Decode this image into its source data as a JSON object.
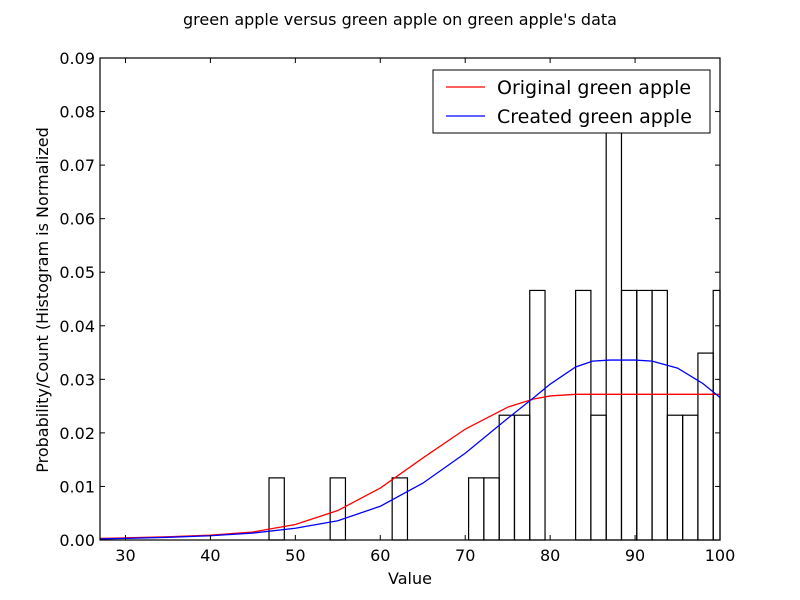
{
  "chart_data": {
    "type": "bar",
    "title": "green apple versus green apple on green apple's data",
    "xlabel": "Value",
    "ylabel": "Probability/Count (Histogram is Normalized",
    "xlim": [
      27,
      100
    ],
    "ylim": [
      0,
      0.09
    ],
    "grid": false,
    "legend_placement": "top-right",
    "x_ticks": [
      30,
      40,
      50,
      60,
      70,
      80,
      90,
      100
    ],
    "x_tick_labels": [
      "30",
      "40",
      "50",
      "60",
      "70",
      "80",
      "90",
      "100"
    ],
    "y_ticks": [
      0.0,
      0.01,
      0.02,
      0.03,
      0.04,
      0.05,
      0.06,
      0.07,
      0.08,
      0.09
    ],
    "y_tick_labels": [
      "0.00",
      "0.01",
      "0.02",
      "0.03",
      "0.04",
      "0.05",
      "0.06",
      "0.07",
      "0.08",
      "0.09"
    ],
    "histogram": {
      "bins": [
        {
          "start": 46.9,
          "end": 48.7,
          "value": 0.0116
        },
        {
          "start": 54.1,
          "end": 55.9,
          "value": 0.0116
        },
        {
          "start": 61.4,
          "end": 63.2,
          "value": 0.0116
        },
        {
          "start": 70.4,
          "end": 72.2,
          "value": 0.0116
        },
        {
          "start": 72.2,
          "end": 74.0,
          "value": 0.0116
        },
        {
          "start": 74.0,
          "end": 75.8,
          "value": 0.0233
        },
        {
          "start": 75.8,
          "end": 77.6,
          "value": 0.0233
        },
        {
          "start": 77.6,
          "end": 79.4,
          "value": 0.0466
        },
        {
          "start": 83.0,
          "end": 84.8,
          "value": 0.0466
        },
        {
          "start": 84.8,
          "end": 86.6,
          "value": 0.0233
        },
        {
          "start": 86.6,
          "end": 88.4,
          "value": 0.0814
        },
        {
          "start": 88.4,
          "end": 90.2,
          "value": 0.0466
        },
        {
          "start": 90.2,
          "end": 92.0,
          "value": 0.0466
        },
        {
          "start": 92.0,
          "end": 93.8,
          "value": 0.0466
        },
        {
          "start": 93.8,
          "end": 95.6,
          "value": 0.0233
        },
        {
          "start": 95.6,
          "end": 97.4,
          "value": 0.0233
        },
        {
          "start": 97.4,
          "end": 99.2,
          "value": 0.0349
        },
        {
          "start": 99.2,
          "end": 100.0,
          "value": 0.0466
        }
      ],
      "edge_color": "#000000",
      "fill": "none"
    },
    "series": [
      {
        "name": "Original green apple",
        "color": "#ff0000",
        "x": [
          27,
          30,
          35,
          40,
          45,
          50,
          55,
          60,
          65,
          70,
          75,
          78,
          80,
          83,
          85,
          90,
          95,
          100
        ],
        "y": [
          0.0003,
          0.0004,
          0.0006,
          0.0009,
          0.0015,
          0.0029,
          0.0055,
          0.0097,
          0.0153,
          0.0207,
          0.0248,
          0.0263,
          0.0269,
          0.0272,
          0.0272,
          0.0272,
          0.0272,
          0.0272
        ]
      },
      {
        "name": "Created green apple",
        "color": "#0000ff",
        "x": [
          27,
          30,
          35,
          40,
          45,
          50,
          55,
          60,
          65,
          70,
          75,
          78,
          80,
          83,
          85,
          87,
          90,
          92,
          95,
          98,
          100
        ],
        "y": [
          0.0002,
          0.0003,
          0.0005,
          0.0008,
          0.0013,
          0.0022,
          0.0036,
          0.0063,
          0.0106,
          0.0162,
          0.0227,
          0.0265,
          0.0291,
          0.0323,
          0.0334,
          0.0336,
          0.0336,
          0.0334,
          0.0321,
          0.0292,
          0.0266
        ]
      }
    ]
  }
}
